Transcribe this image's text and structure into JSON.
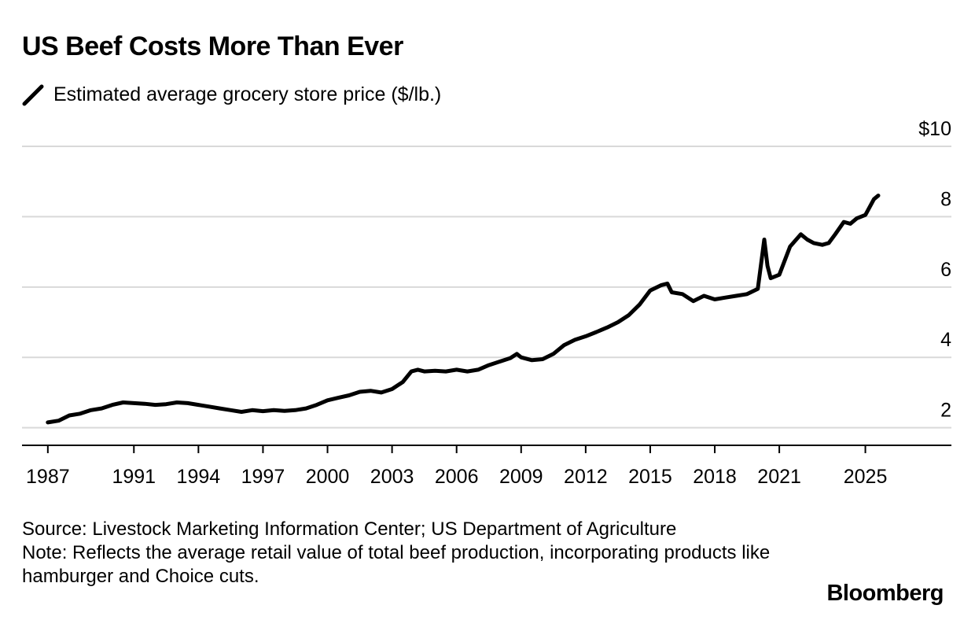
{
  "title": "US Beef Costs More Than Ever",
  "legend_label": "Estimated average grocery store price ($/lb.)",
  "source": "Source: Livestock Marketing Information Center; US Department of Agriculture",
  "note": "Note: Reflects the average retail value of total beef production, incorporating products like hamburger and Choice cuts.",
  "brand": "Bloomberg",
  "colors": {
    "line": "#000000",
    "grid": "#d9d9d9",
    "axis": "#000000"
  },
  "chart_data": {
    "type": "line",
    "series": [
      {
        "name": "Estimated average grocery store price ($/lb.)",
        "x": [
          1987.0,
          1987.5,
          1988.0,
          1988.5,
          1989.0,
          1989.5,
          1990.0,
          1990.5,
          1991.0,
          1991.5,
          1992.0,
          1992.5,
          1993.0,
          1993.5,
          1994.0,
          1994.5,
          1995.0,
          1995.5,
          1996.0,
          1996.5,
          1997.0,
          1997.5,
          1998.0,
          1998.5,
          1999.0,
          1999.5,
          2000.0,
          2000.5,
          2001.0,
          2001.5,
          2002.0,
          2002.5,
          2003.0,
          2003.5,
          2003.9,
          2004.2,
          2004.5,
          2005.0,
          2005.5,
          2006.0,
          2006.5,
          2007.0,
          2007.5,
          2008.0,
          2008.5,
          2008.8,
          2009.0,
          2009.5,
          2010.0,
          2010.5,
          2011.0,
          2011.5,
          2012.0,
          2012.5,
          2013.0,
          2013.5,
          2014.0,
          2014.5,
          2015.0,
          2015.5,
          2015.8,
          2016.0,
          2016.5,
          2017.0,
          2017.5,
          2018.0,
          2018.5,
          2019.0,
          2019.5,
          2020.0,
          2020.3,
          2020.45,
          2020.6,
          2021.0,
          2021.5,
          2022.0,
          2022.3,
          2022.6,
          2023.0,
          2023.3,
          2023.6,
          2024.0,
          2024.3,
          2024.6,
          2025.0,
          2025.4,
          2025.6
        ],
        "y": [
          2.15,
          2.2,
          2.35,
          2.4,
          2.5,
          2.55,
          2.65,
          2.72,
          2.7,
          2.68,
          2.65,
          2.67,
          2.72,
          2.7,
          2.65,
          2.6,
          2.55,
          2.5,
          2.45,
          2.5,
          2.47,
          2.5,
          2.48,
          2.5,
          2.55,
          2.65,
          2.78,
          2.85,
          2.92,
          3.02,
          3.05,
          3.0,
          3.1,
          3.3,
          3.6,
          3.65,
          3.6,
          3.62,
          3.6,
          3.65,
          3.6,
          3.65,
          3.78,
          3.88,
          3.98,
          4.1,
          4.0,
          3.92,
          3.95,
          4.1,
          4.35,
          4.5,
          4.6,
          4.72,
          4.85,
          5.0,
          5.2,
          5.5,
          5.9,
          6.05,
          6.1,
          5.85,
          5.8,
          5.6,
          5.75,
          5.65,
          5.7,
          5.75,
          5.8,
          5.95,
          7.35,
          6.6,
          6.25,
          6.35,
          7.15,
          7.5,
          7.35,
          7.25,
          7.2,
          7.25,
          7.5,
          7.85,
          7.8,
          7.95,
          8.05,
          8.5,
          8.6
        ]
      }
    ],
    "x_ticks": [
      "1987",
      "1991",
      "1994",
      "1997",
      "2000",
      "2003",
      "2006",
      "2009",
      "2012",
      "2015",
      "2018",
      "2021",
      "2025"
    ],
    "x_tick_values": [
      1987,
      1991,
      1994,
      1997,
      2000,
      2003,
      2006,
      2009,
      2012,
      2015,
      2018,
      2021,
      2025
    ],
    "y_ticks": [
      "2",
      "4",
      "6",
      "8",
      "$10"
    ],
    "y_tick_values": [
      2,
      4,
      6,
      8,
      10
    ],
    "xlim": [
      1985.8,
      2029.0
    ],
    "ylim": [
      1.5,
      10
    ],
    "grid": true,
    "xlabel": "",
    "ylabel": ""
  }
}
